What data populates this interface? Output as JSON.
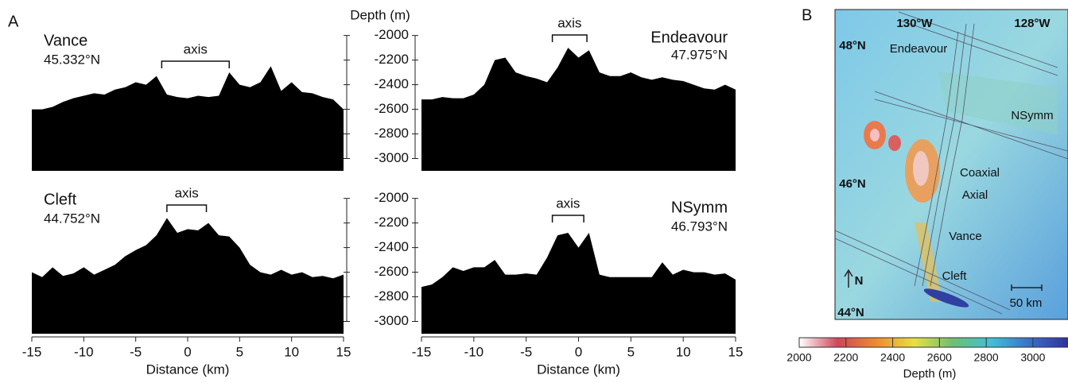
{
  "panel_labels": [
    "A",
    "B"
  ],
  "chart_data": [
    {
      "type": "area",
      "title": "Vance",
      "subtitle": "45.332°N",
      "annotation": "axis",
      "axis_span": [
        -2.5,
        4
      ],
      "color": "#000000",
      "x": [
        -15,
        -14,
        -13,
        -12,
        -11,
        -10,
        -9,
        -8,
        -7,
        -6,
        -5,
        -4,
        -3,
        -2,
        -1,
        0,
        1,
        2,
        3,
        4,
        5,
        6,
        7,
        8,
        9,
        10,
        11,
        12,
        13,
        14,
        15
      ],
      "values": [
        -2600,
        -2600,
        -2580,
        -2540,
        -2510,
        -2490,
        -2470,
        -2480,
        -2440,
        -2420,
        -2380,
        -2400,
        -2330,
        -2480,
        -2500,
        -2510,
        -2490,
        -2500,
        -2490,
        -2300,
        -2400,
        -2420,
        -2380,
        -2250,
        -2450,
        -2380,
        -2460,
        -2470,
        -2500,
        -2520,
        -2600
      ],
      "xlim": [
        -15,
        15
      ],
      "ylim": [
        -3100,
        -1970
      ],
      "yticks": [
        -2000,
        -2200,
        -2400,
        -2600,
        -2800,
        -3000
      ]
    },
    {
      "type": "area",
      "title": "Endeavour",
      "subtitle": "47.975°N",
      "annotation": "axis",
      "axis_span": [
        -2.5,
        0.8
      ],
      "color": "#000000",
      "ylabel": "Depth (m)",
      "x": [
        -15,
        -14,
        -13,
        -12,
        -11,
        -10,
        -9,
        -8,
        -7,
        -6,
        -5,
        -4,
        -3,
        -2,
        -1,
        0,
        1,
        2,
        3,
        4,
        5,
        6,
        7,
        8,
        9,
        10,
        11,
        12,
        13,
        14,
        15
      ],
      "values": [
        -2520,
        -2520,
        -2500,
        -2510,
        -2510,
        -2480,
        -2400,
        -2200,
        -2180,
        -2300,
        -2330,
        -2350,
        -2380,
        -2260,
        -2100,
        -2180,
        -2120,
        -2300,
        -2330,
        -2330,
        -2300,
        -2340,
        -2360,
        -2340,
        -2360,
        -2370,
        -2400,
        -2430,
        -2440,
        -2400,
        -2440
      ],
      "xlim": [
        -15,
        15
      ],
      "ylim": [
        -3100,
        -1970
      ],
      "yticks": [
        -2000,
        -2200,
        -2400,
        -2600,
        -2800,
        -3000
      ]
    },
    {
      "type": "area",
      "title": "Cleft",
      "subtitle": "44.752°N",
      "annotation": "axis",
      "axis_span": [
        -2,
        1.8
      ],
      "color": "#000000",
      "xlabel": "Distance (km)",
      "x": [
        -15,
        -14,
        -13,
        -12,
        -11,
        -10,
        -9,
        -8,
        -7,
        -6,
        -5,
        -4,
        -3,
        -2,
        -1,
        0,
        1,
        2,
        3,
        4,
        5,
        6,
        7,
        8,
        9,
        10,
        11,
        12,
        13,
        14,
        15
      ],
      "values": [
        -2600,
        -2640,
        -2560,
        -2630,
        -2610,
        -2560,
        -2620,
        -2580,
        -2540,
        -2470,
        -2420,
        -2380,
        -2300,
        -2160,
        -2280,
        -2250,
        -2260,
        -2200,
        -2300,
        -2310,
        -2400,
        -2540,
        -2600,
        -2620,
        -2580,
        -2620,
        -2600,
        -2640,
        -2630,
        -2650,
        -2620
      ],
      "xlim": [
        -15,
        15
      ],
      "ylim": [
        -3100,
        -1970
      ],
      "yticks": [
        -2000,
        -2200,
        -2400,
        -2600,
        -2800,
        -3000
      ],
      "xticks": [
        -15,
        -10,
        -5,
        0,
        5,
        10,
        15
      ]
    },
    {
      "type": "area",
      "title": "NSymm",
      "subtitle": "46.793°N",
      "annotation": "axis",
      "axis_span": [
        -2.5,
        0.5
      ],
      "color": "#000000",
      "xlabel": "Distance (km)",
      "x": [
        -15,
        -14,
        -13,
        -12,
        -11,
        -10,
        -9,
        -8,
        -7,
        -6,
        -5,
        -4,
        -3,
        -2,
        -1,
        0,
        1,
        2,
        3,
        4,
        5,
        6,
        7,
        8,
        9,
        10,
        11,
        12,
        13,
        14,
        15
      ],
      "values": [
        -2720,
        -2700,
        -2640,
        -2560,
        -2590,
        -2560,
        -2560,
        -2500,
        -2620,
        -2620,
        -2610,
        -2620,
        -2480,
        -2300,
        -2280,
        -2400,
        -2280,
        -2620,
        -2640,
        -2640,
        -2640,
        -2640,
        -2640,
        -2520,
        -2620,
        -2580,
        -2600,
        -2600,
        -2620,
        -2610,
        -2660
      ],
      "xlim": [
        -15,
        15
      ],
      "ylim": [
        -3100,
        -1970
      ],
      "yticks": [
        -2000,
        -2200,
        -2400,
        -2600,
        -2800,
        -3000
      ],
      "xticks": [
        -15,
        -10,
        -5,
        0,
        5,
        10,
        15
      ]
    },
    {
      "type": "colorbar",
      "xlabel": "Depth (m)",
      "xlim": [
        2000,
        3150
      ],
      "xticks": [
        2000,
        2200,
        2400,
        2600,
        2800,
        3000
      ],
      "colormap": [
        "#ffffff",
        "#d0455a",
        "#f08a2c",
        "#e8e040",
        "#6cc070",
        "#40c0d8",
        "#3a70c8",
        "#3030a0"
      ]
    }
  ],
  "map": {
    "labels": [
      "130°W",
      "128°W",
      "48°N",
      "46°N",
      "44°N",
      "Endeavour",
      "NSymm",
      "Coaxial",
      "Axial",
      "Vance",
      "Cleft",
      "N",
      "50 km"
    ]
  }
}
